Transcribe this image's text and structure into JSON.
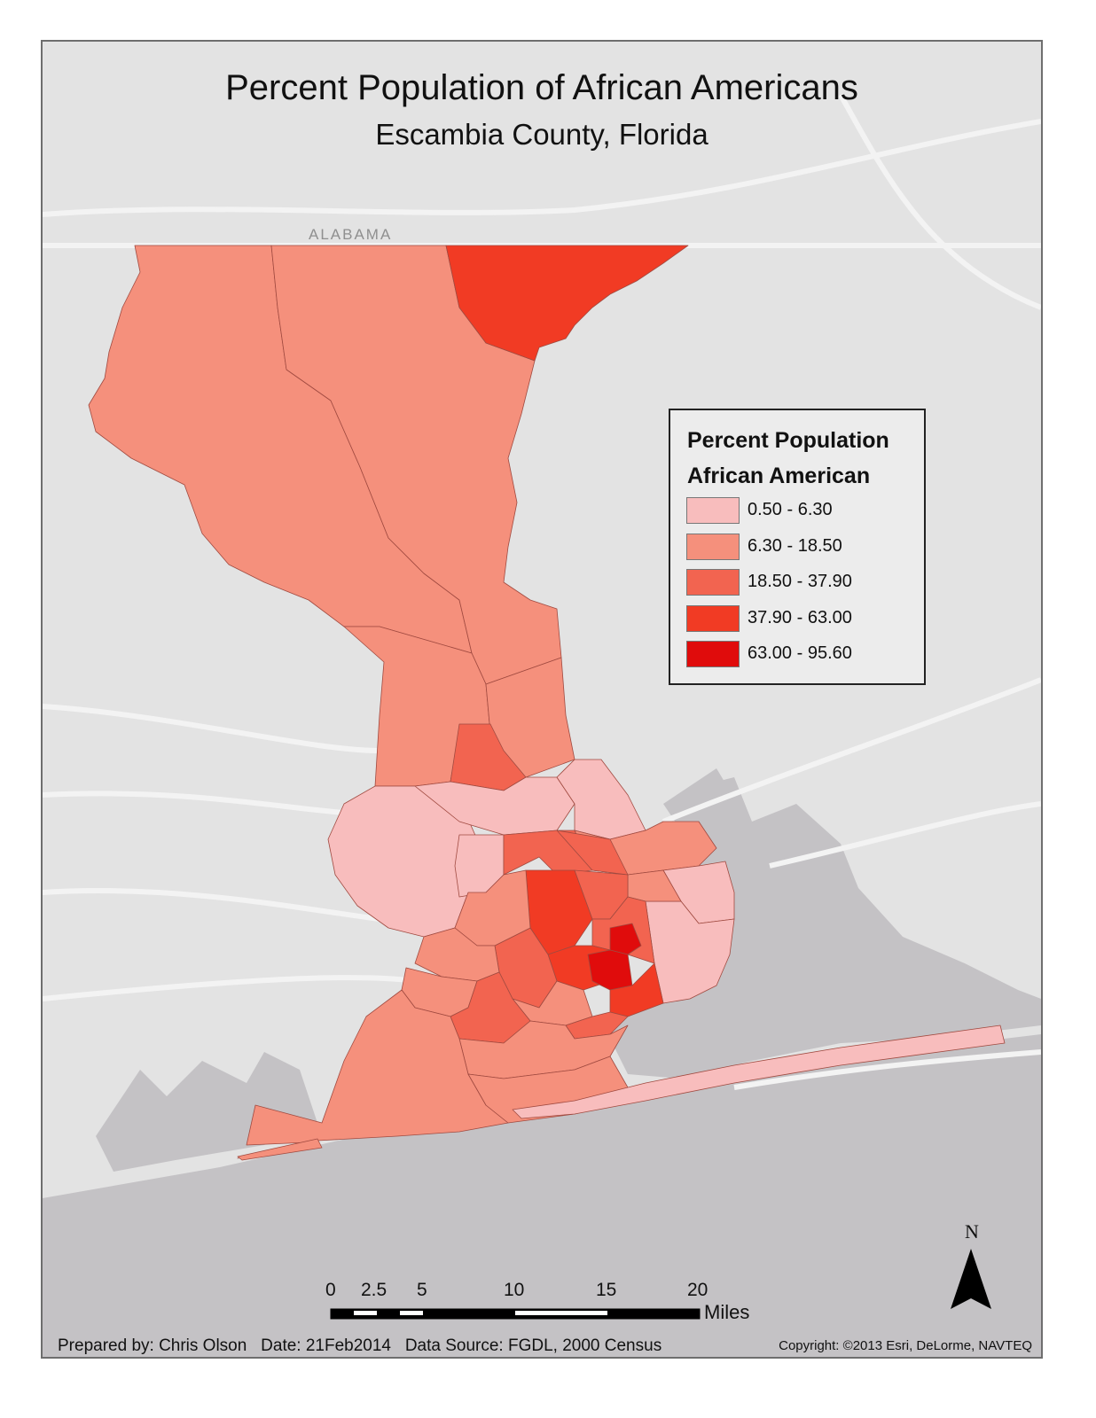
{
  "map": {
    "title": "Percent Population of African Americans",
    "subtitle": "Escambia County, Florida",
    "state_label": "ALABAMA"
  },
  "legend": {
    "title_line_1": "Percent Population",
    "title_line_2": "African American",
    "classes": [
      {
        "label": "0.50 - 6.30",
        "color": "#f8bdbd"
      },
      {
        "label": "6.30 - 18.50",
        "color": "#f5907c"
      },
      {
        "label": "18.50 - 37.90",
        "color": "#f26450"
      },
      {
        "label": "37.90 - 63.00",
        "color": "#f13b24"
      },
      {
        "label": "63.00 - 95.60",
        "color": "#e00c0c"
      }
    ]
  },
  "north_arrow": {
    "label": "N"
  },
  "scale_bar": {
    "ticks": [
      "0",
      "2.5",
      "5",
      "10",
      "15",
      "20"
    ],
    "unit": "Miles"
  },
  "footer": {
    "credits": "Prepared by: Chris Olson   Date: 21Feb2014   Data Source: FGDL, 2000 Census",
    "copyright": "Copyright: ©2013 Esri, DeLorme, NAVTEQ"
  },
  "colors": {
    "land": "#e3e3e3",
    "water": "#c4c2c5",
    "roads": "#f2f2f2",
    "tract_border": "#a04a40"
  }
}
